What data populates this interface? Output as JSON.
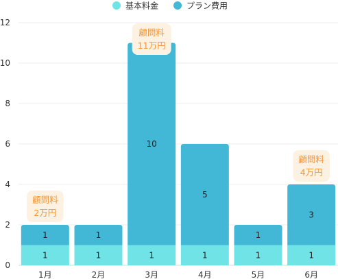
{
  "chart_data": {
    "type": "bar",
    "stacked": true,
    "categories": [
      "1月",
      "2月",
      "3月",
      "4月",
      "5月",
      "6月"
    ],
    "series": [
      {
        "name": "基本料金",
        "values": [
          1,
          1,
          1,
          1,
          1,
          1
        ],
        "color": "#6fe3e6"
      },
      {
        "name": "プラン費用",
        "values": [
          1,
          1,
          10,
          5,
          1,
          3
        ],
        "color": "#42b7d6"
      }
    ],
    "ylim": [
      0,
      12
    ],
    "yticks": [
      0,
      2,
      4,
      6,
      8,
      10,
      12
    ],
    "grid": true,
    "legend_position": "top-center",
    "annotations": [
      {
        "category": "1月",
        "lines": [
          "顧問料",
          "2万円"
        ]
      },
      {
        "category": "3月",
        "lines": [
          "顧問料",
          "11万円"
        ]
      },
      {
        "category": "6月",
        "lines": [
          "顧問料",
          "4万円"
        ]
      }
    ],
    "annotation_style": {
      "background": "#fdf2e1",
      "text_color": "#f0963a"
    }
  }
}
